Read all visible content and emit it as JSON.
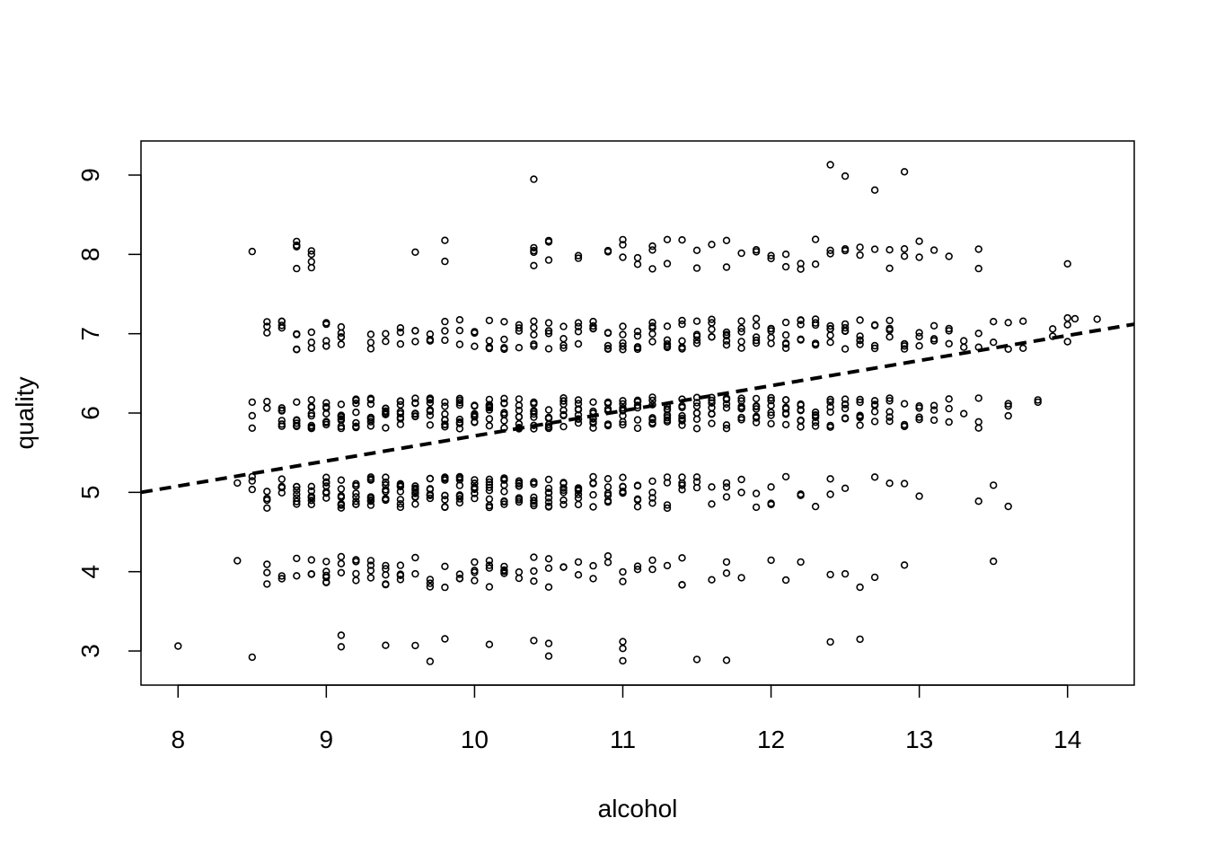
{
  "chart_data": {
    "type": "scatter",
    "title": "",
    "xlabel": "alcohol",
    "ylabel": "quality",
    "xlim": [
      7.75,
      14.45
    ],
    "ylim": [
      2.57,
      9.43
    ],
    "x_ticks": [
      "8",
      "9",
      "10",
      "11",
      "12",
      "13",
      "14"
    ],
    "y_ticks": [
      "3",
      "4",
      "5",
      "6",
      "7",
      "8",
      "9"
    ],
    "grid": false,
    "legend": "none",
    "jitter": 0.2,
    "point_color": "#000000",
    "series": [
      {
        "quality": 3,
        "alcohol": [
          8.0,
          8.5,
          9.1,
          9.1,
          9.4,
          9.6,
          9.7,
          9.8,
          10.1,
          10.4,
          10.5,
          10.5,
          11.0,
          11.0,
          11.0,
          11.5,
          11.7,
          12.4,
          12.6
        ]
      },
      {
        "quality": 4,
        "alcohol": [
          8.4,
          8.6,
          8.6,
          8.6,
          8.7,
          8.7,
          8.8,
          8.8,
          8.9,
          8.9,
          8.9,
          9.0,
          9.0,
          9.0,
          9.0,
          9.0,
          9.0,
          9.1,
          9.1,
          9.1,
          9.2,
          9.2,
          9.2,
          9.2,
          9.3,
          9.3,
          9.3,
          9.3,
          9.4,
          9.4,
          9.4,
          9.4,
          9.4,
          9.5,
          9.5,
          9.5,
          9.5,
          9.5,
          9.6,
          9.6,
          9.7,
          9.7,
          9.7,
          9.8,
          9.8,
          9.9,
          9.9,
          9.9,
          10.0,
          10.0,
          10.0,
          10.0,
          10.1,
          10.1,
          10.1,
          10.1,
          10.2,
          10.2,
          10.2,
          10.2,
          10.3,
          10.3,
          10.4,
          10.4,
          10.4,
          10.5,
          10.5,
          10.5,
          10.6,
          10.6,
          10.7,
          10.7,
          10.8,
          10.8,
          10.9,
          10.9,
          11.0,
          11.0,
          11.1,
          11.1,
          11.2,
          11.2,
          11.3,
          11.4,
          11.4,
          11.4,
          11.6,
          11.7,
          11.7,
          11.8,
          12.0,
          12.1,
          12.2,
          12.4,
          12.5,
          12.6,
          12.7,
          12.9,
          13.5
        ]
      },
      {
        "quality": 5,
        "alcohol": [
          8.4,
          8.5,
          8.5,
          8.5,
          8.6,
          8.6,
          8.6,
          8.6,
          8.7,
          8.7,
          8.7,
          8.7,
          8.7,
          8.7,
          8.8,
          8.8,
          8.8,
          8.8,
          8.8,
          8.8,
          8.8,
          8.9,
          8.9,
          8.9,
          8.9,
          8.9,
          8.9,
          8.9,
          9.0,
          9.0,
          9.0,
          9.0,
          9.0,
          9.0,
          9.0,
          9.0,
          9.1,
          9.1,
          9.1,
          9.1,
          9.1,
          9.1,
          9.1,
          9.1,
          9.2,
          9.2,
          9.2,
          9.2,
          9.2,
          9.2,
          9.2,
          9.2,
          9.3,
          9.3,
          9.3,
          9.3,
          9.3,
          9.3,
          9.3,
          9.3,
          9.4,
          9.4,
          9.4,
          9.4,
          9.4,
          9.4,
          9.4,
          9.4,
          9.5,
          9.5,
          9.5,
          9.5,
          9.5,
          9.5,
          9.5,
          9.5,
          9.6,
          9.6,
          9.6,
          9.6,
          9.6,
          9.6,
          9.6,
          9.6,
          9.7,
          9.7,
          9.7,
          9.7,
          9.7,
          9.7,
          9.7,
          9.7,
          9.8,
          9.8,
          9.8,
          9.8,
          9.8,
          9.8,
          9.8,
          9.8,
          9.9,
          9.9,
          9.9,
          9.9,
          9.9,
          9.9,
          9.9,
          9.9,
          10.0,
          10.0,
          10.0,
          10.0,
          10.0,
          10.0,
          10.0,
          10.0,
          10.1,
          10.1,
          10.1,
          10.1,
          10.1,
          10.1,
          10.1,
          10.1,
          10.2,
          10.2,
          10.2,
          10.2,
          10.2,
          10.2,
          10.2,
          10.2,
          10.3,
          10.3,
          10.3,
          10.3,
          10.3,
          10.3,
          10.3,
          10.3,
          10.4,
          10.4,
          10.4,
          10.4,
          10.4,
          10.4,
          10.4,
          10.4,
          10.5,
          10.5,
          10.5,
          10.5,
          10.5,
          10.5,
          10.5,
          10.5,
          10.6,
          10.6,
          10.6,
          10.6,
          10.6,
          10.6,
          10.6,
          10.7,
          10.7,
          10.7,
          10.7,
          10.7,
          10.7,
          10.7,
          10.8,
          10.8,
          10.8,
          10.8,
          10.8,
          10.8,
          10.9,
          10.9,
          10.9,
          10.9,
          10.9,
          10.9,
          11.0,
          11.0,
          11.0,
          11.0,
          11.0,
          11.0,
          11.1,
          11.1,
          11.1,
          11.1,
          11.1,
          11.2,
          11.2,
          11.2,
          11.2,
          11.3,
          11.3,
          11.3,
          11.3,
          11.4,
          11.4,
          11.4,
          11.4,
          11.5,
          11.5,
          11.5,
          11.6,
          11.6,
          11.7,
          11.7,
          11.7,
          11.8,
          11.8,
          11.9,
          11.9,
          12.0,
          12.0,
          12.0,
          12.1,
          12.2,
          12.2,
          12.3,
          12.4,
          12.4,
          12.5,
          12.7,
          12.8,
          12.9,
          13.0,
          13.4,
          13.5,
          13.6
        ]
      },
      {
        "quality": 6,
        "alcohol": [
          8.5,
          8.5,
          8.5,
          8.6,
          8.6,
          8.7,
          8.7,
          8.7,
          8.7,
          8.7,
          8.7,
          8.8,
          8.8,
          8.8,
          8.8,
          8.8,
          8.8,
          8.8,
          8.8,
          8.9,
          8.9,
          8.9,
          8.9,
          8.9,
          8.9,
          8.9,
          8.9,
          9.0,
          9.0,
          9.0,
          9.0,
          9.0,
          9.0,
          9.0,
          9.0,
          9.1,
          9.1,
          9.1,
          9.1,
          9.1,
          9.1,
          9.1,
          9.1,
          9.2,
          9.2,
          9.2,
          9.2,
          9.2,
          9.2,
          9.2,
          9.2,
          9.3,
          9.3,
          9.3,
          9.3,
          9.3,
          9.3,
          9.3,
          9.3,
          9.4,
          9.4,
          9.4,
          9.4,
          9.4,
          9.4,
          9.4,
          9.4,
          9.5,
          9.5,
          9.5,
          9.5,
          9.5,
          9.5,
          9.5,
          9.5,
          9.6,
          9.6,
          9.6,
          9.6,
          9.6,
          9.6,
          9.6,
          9.6,
          9.7,
          9.7,
          9.7,
          9.7,
          9.7,
          9.7,
          9.7,
          9.7,
          9.8,
          9.8,
          9.8,
          9.8,
          9.8,
          9.8,
          9.8,
          9.8,
          9.9,
          9.9,
          9.9,
          9.9,
          9.9,
          9.9,
          9.9,
          9.9,
          10.0,
          10.0,
          10.0,
          10.0,
          10.0,
          10.0,
          10.0,
          10.0,
          10.1,
          10.1,
          10.1,
          10.1,
          10.1,
          10.1,
          10.1,
          10.1,
          10.2,
          10.2,
          10.2,
          10.2,
          10.2,
          10.2,
          10.2,
          10.2,
          10.3,
          10.3,
          10.3,
          10.3,
          10.3,
          10.3,
          10.3,
          10.3,
          10.4,
          10.4,
          10.4,
          10.4,
          10.4,
          10.4,
          10.4,
          10.4,
          10.5,
          10.5,
          10.5,
          10.5,
          10.5,
          10.5,
          10.5,
          10.5,
          10.6,
          10.6,
          10.6,
          10.6,
          10.6,
          10.6,
          10.6,
          10.6,
          10.7,
          10.7,
          10.7,
          10.7,
          10.7,
          10.7,
          10.7,
          10.7,
          10.8,
          10.8,
          10.8,
          10.8,
          10.8,
          10.8,
          10.8,
          10.8,
          10.9,
          10.9,
          10.9,
          10.9,
          10.9,
          10.9,
          10.9,
          10.9,
          11.0,
          11.0,
          11.0,
          11.0,
          11.0,
          11.0,
          11.0,
          11.0,
          11.1,
          11.1,
          11.1,
          11.1,
          11.1,
          11.1,
          11.1,
          11.1,
          11.2,
          11.2,
          11.2,
          11.2,
          11.2,
          11.2,
          11.2,
          11.2,
          11.3,
          11.3,
          11.3,
          11.3,
          11.3,
          11.3,
          11.3,
          11.3,
          11.4,
          11.4,
          11.4,
          11.4,
          11.4,
          11.4,
          11.4,
          11.4,
          11.5,
          11.5,
          11.5,
          11.5,
          11.5,
          11.5,
          11.5,
          11.6,
          11.6,
          11.6,
          11.6,
          11.6,
          11.6,
          11.6,
          11.7,
          11.7,
          11.7,
          11.7,
          11.7,
          11.7,
          11.7,
          11.8,
          11.8,
          11.8,
          11.8,
          11.8,
          11.8,
          11.8,
          11.9,
          11.9,
          11.9,
          11.9,
          11.9,
          11.9,
          11.9,
          12.0,
          12.0,
          12.0,
          12.0,
          12.0,
          12.0,
          12.0,
          12.1,
          12.1,
          12.1,
          12.1,
          12.1,
          12.1,
          12.1,
          12.2,
          12.2,
          12.2,
          12.2,
          12.2,
          12.2,
          12.2,
          12.3,
          12.3,
          12.3,
          12.3,
          12.3,
          12.3,
          12.4,
          12.4,
          12.4,
          12.4,
          12.4,
          12.4,
          12.5,
          12.5,
          12.5,
          12.5,
          12.5,
          12.5,
          12.6,
          12.6,
          12.6,
          12.6,
          12.6,
          12.6,
          12.7,
          12.7,
          12.7,
          12.7,
          12.7,
          12.8,
          12.8,
          12.8,
          12.8,
          12.8,
          12.9,
          12.9,
          12.9,
          12.9,
          13.0,
          13.0,
          13.0,
          13.0,
          13.1,
          13.1,
          13.1,
          13.2,
          13.2,
          13.2,
          13.3,
          13.4,
          13.4,
          13.4,
          13.6,
          13.6,
          13.6,
          13.8,
          13.8
        ]
      },
      {
        "quality": 7,
        "alcohol": [
          8.6,
          8.6,
          8.6,
          8.7,
          8.7,
          8.7,
          8.7,
          8.8,
          8.8,
          8.8,
          8.8,
          8.9,
          8.9,
          8.9,
          9.0,
          9.0,
          9.0,
          9.0,
          9.0,
          9.1,
          9.1,
          9.1,
          9.1,
          9.1,
          9.3,
          9.3,
          9.3,
          9.4,
          9.4,
          9.5,
          9.5,
          9.5,
          9.6,
          9.6,
          9.6,
          9.7,
          9.7,
          9.7,
          9.8,
          9.8,
          9.8,
          9.9,
          9.9,
          9.9,
          10.0,
          10.0,
          10.0,
          10.0,
          10.1,
          10.1,
          10.1,
          10.1,
          10.2,
          10.2,
          10.2,
          10.2,
          10.3,
          10.3,
          10.3,
          10.3,
          10.4,
          10.4,
          10.4,
          10.4,
          10.4,
          10.5,
          10.5,
          10.5,
          10.5,
          10.5,
          10.6,
          10.6,
          10.6,
          10.6,
          10.7,
          10.7,
          10.7,
          10.7,
          10.8,
          10.8,
          10.8,
          10.8,
          10.9,
          10.9,
          10.9,
          10.9,
          10.9,
          11.0,
          11.0,
          11.0,
          11.0,
          11.0,
          11.1,
          11.1,
          11.1,
          11.1,
          11.1,
          11.2,
          11.2,
          11.2,
          11.2,
          11.2,
          11.3,
          11.3,
          11.3,
          11.3,
          11.3,
          11.4,
          11.4,
          11.4,
          11.4,
          11.4,
          11.5,
          11.5,
          11.5,
          11.5,
          11.5,
          11.6,
          11.6,
          11.6,
          11.6,
          11.6,
          11.7,
          11.7,
          11.7,
          11.7,
          11.7,
          11.8,
          11.8,
          11.8,
          11.8,
          11.8,
          11.9,
          11.9,
          11.9,
          11.9,
          11.9,
          12.0,
          12.0,
          12.0,
          12.0,
          12.0,
          12.1,
          12.1,
          12.1,
          12.1,
          12.1,
          12.2,
          12.2,
          12.2,
          12.2,
          12.2,
          12.3,
          12.3,
          12.3,
          12.3,
          12.3,
          12.4,
          12.4,
          12.4,
          12.4,
          12.4,
          12.5,
          12.5,
          12.5,
          12.5,
          12.5,
          12.6,
          12.6,
          12.6,
          12.6,
          12.6,
          12.7,
          12.7,
          12.7,
          12.7,
          12.8,
          12.8,
          12.8,
          12.8,
          12.9,
          12.9,
          12.9,
          12.9,
          13.0,
          13.0,
          13.0,
          13.1,
          13.1,
          13.1,
          13.2,
          13.2,
          13.2,
          13.3,
          13.3,
          13.4,
          13.4,
          13.5,
          13.5,
          13.6,
          13.6,
          13.7,
          13.7,
          13.9,
          13.9,
          14.0,
          14.0,
          14.0,
          14.05,
          14.2
        ]
      },
      {
        "quality": 8,
        "alcohol": [
          8.5,
          8.8,
          8.8,
          8.8,
          8.8,
          8.8,
          8.9,
          8.9,
          8.9,
          8.9,
          9.6,
          9.8,
          9.8,
          10.4,
          10.4,
          10.4,
          10.4,
          10.5,
          10.5,
          10.5,
          10.7,
          10.7,
          10.9,
          10.9,
          11.0,
          11.0,
          11.0,
          11.1,
          11.1,
          11.2,
          11.2,
          11.2,
          11.3,
          11.3,
          11.4,
          11.5,
          11.5,
          11.6,
          11.7,
          11.7,
          11.8,
          11.9,
          11.9,
          12.0,
          12.0,
          12.1,
          12.1,
          12.2,
          12.2,
          12.3,
          12.3,
          12.4,
          12.4,
          12.5,
          12.5,
          12.6,
          12.6,
          12.7,
          12.8,
          12.8,
          12.9,
          12.9,
          13.0,
          13.0,
          13.1,
          13.2,
          13.4,
          13.4,
          14.0
        ]
      },
      {
        "quality": 9,
        "alcohol": [
          10.4,
          12.4,
          12.5,
          12.7,
          12.9
        ]
      }
    ],
    "fit_line": {
      "style": "dashed",
      "points": [
        [
          7.75,
          5.0
        ],
        [
          14.45,
          7.12
        ]
      ]
    }
  }
}
